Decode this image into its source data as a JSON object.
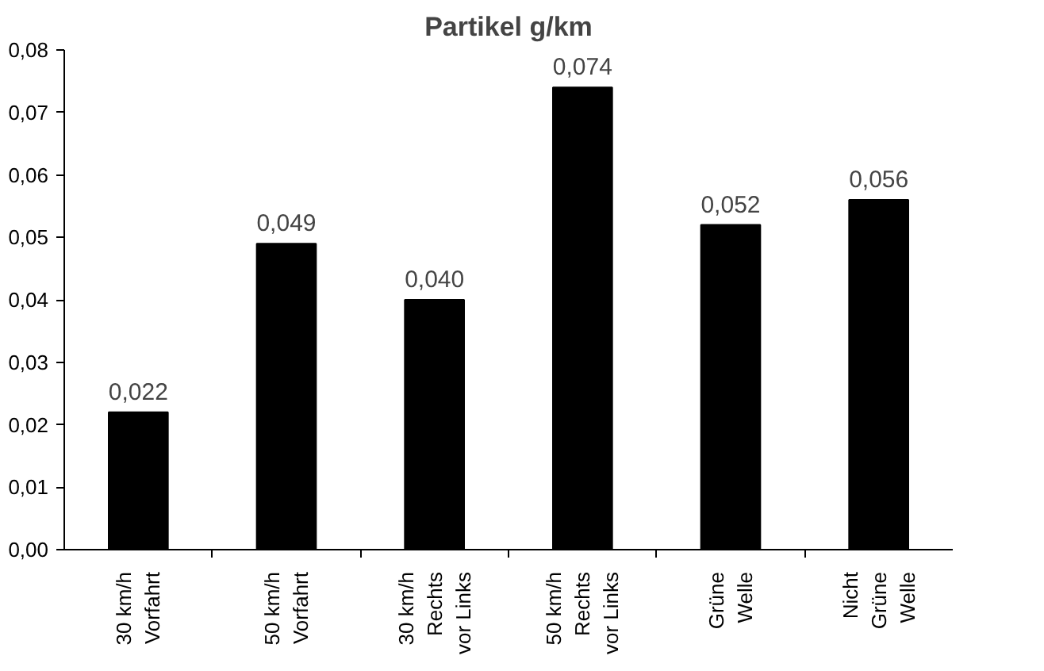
{
  "chart_data": {
    "type": "bar",
    "title": "Partikel g/km",
    "categories": [
      "30 km/h\nVorfahrt",
      "50 km/h\nVorfahrt",
      "30 km/h\nRechts\nvor Links",
      "50 km/h\nRechts\nvor Links",
      "Grüne\nWelle",
      "Nicht\nGrüne\nWelle"
    ],
    "values": [
      0.022,
      0.049,
      0.04,
      0.074,
      0.052,
      0.056
    ],
    "value_labels": [
      "0,022",
      "0,049",
      "0,040",
      "0,074",
      "0,052",
      "0,056"
    ],
    "color": "#000000",
    "ylim": [
      0,
      0.08
    ],
    "yticks": [
      {
        "value": 0,
        "label": "0,00"
      },
      {
        "value": 0.01,
        "label": "0,01"
      },
      {
        "value": 0.02,
        "label": "0,02"
      },
      {
        "value": 0.03,
        "label": "0,03"
      },
      {
        "value": 0.04,
        "label": "0,04"
      },
      {
        "value": 0.05,
        "label": "0,05"
      },
      {
        "value": 0.06,
        "label": "0,06"
      },
      {
        "value": 0.07,
        "label": "0,07"
      },
      {
        "value": 0.08,
        "label": "0,08"
      }
    ],
    "grid": false
  }
}
